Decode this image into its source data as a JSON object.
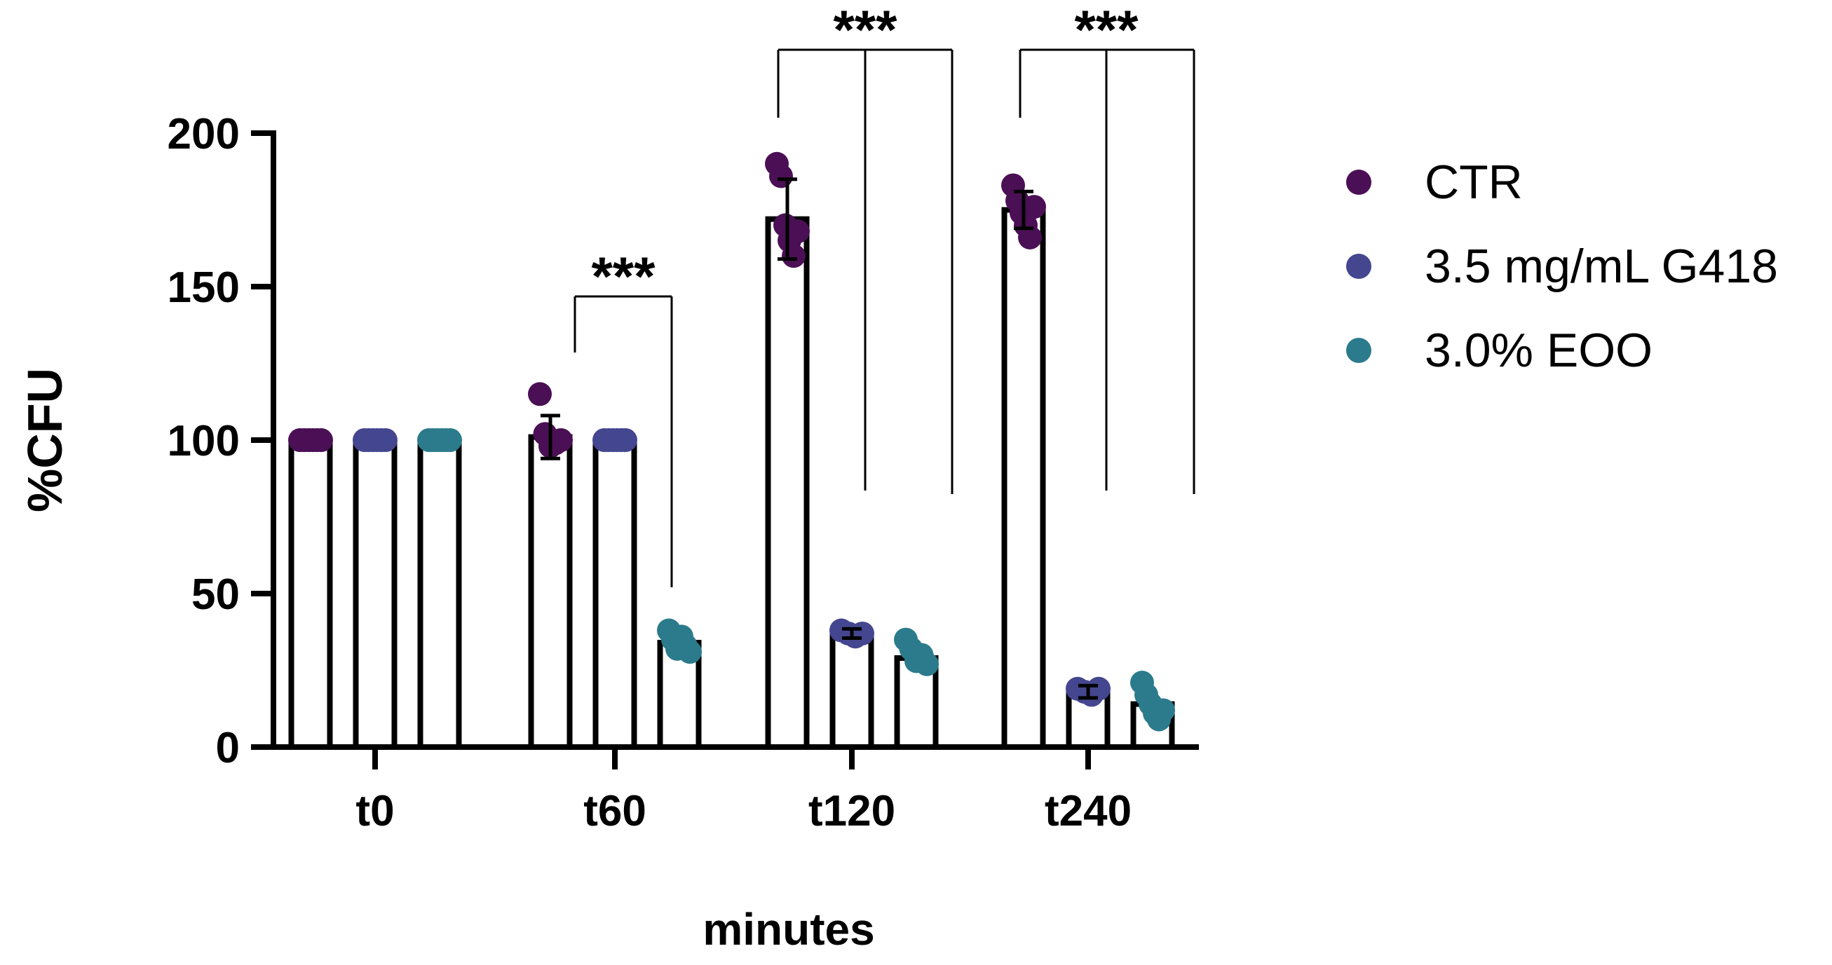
{
  "chart_data": {
    "type": "bar",
    "title": "",
    "xlabel": "minutes",
    "ylabel": "%CFU",
    "ylim": [
      0,
      200
    ],
    "yticks": [
      "0",
      "50",
      "100",
      "150",
      "200"
    ],
    "categories": [
      "t0",
      "t60",
      "t120",
      "t240"
    ],
    "series": [
      {
        "name": "CTR",
        "color": "#4b0f55",
        "values": [
          100,
          101,
          172,
          175
        ],
        "error": [
          0,
          7,
          13,
          6
        ],
        "points": [
          [
            100,
            100,
            100,
            100,
            100,
            100
          ],
          [
            115,
            102,
            98,
            99,
            100
          ],
          [
            190,
            186,
            170,
            165,
            160,
            168
          ],
          [
            183,
            178,
            174,
            170,
            166,
            176
          ]
        ]
      },
      {
        "name": "3.5 mg/mL G418",
        "color": "#44468f",
        "values": [
          100,
          100,
          37,
          18
        ],
        "error": [
          0,
          0,
          1.5,
          2
        ],
        "points": [
          [
            100,
            100,
            100,
            100,
            100,
            100
          ],
          [
            100,
            100,
            100,
            100,
            100,
            100
          ],
          [
            38,
            37,
            36,
            37
          ],
          [
            19,
            18,
            17,
            19
          ]
        ]
      },
      {
        "name": "3.0% EOO",
        "color": "#2b7b8c",
        "values": [
          100,
          34,
          29,
          14
        ],
        "error": [
          0,
          0,
          0,
          0
        ],
        "points": [
          [
            100,
            100,
            100,
            100,
            100,
            100
          ],
          [
            38,
            35,
            32,
            36,
            33,
            31
          ],
          [
            35,
            32,
            28,
            30,
            27
          ],
          [
            21,
            17,
            14,
            11,
            9,
            12
          ]
        ]
      }
    ],
    "significance": [
      {
        "label": "***",
        "category": "t60",
        "comparison": "CTR vs 3.0% EOO"
      },
      {
        "label": "***",
        "category": "t120",
        "comparison": "CTR vs 3.5 mg/mL G418 and 3.0% EOO"
      },
      {
        "label": "***",
        "category": "t240",
        "comparison": "CTR vs 3.5 mg/mL G418 and 3.0% EOO"
      }
    ],
    "legend_position": "right"
  }
}
